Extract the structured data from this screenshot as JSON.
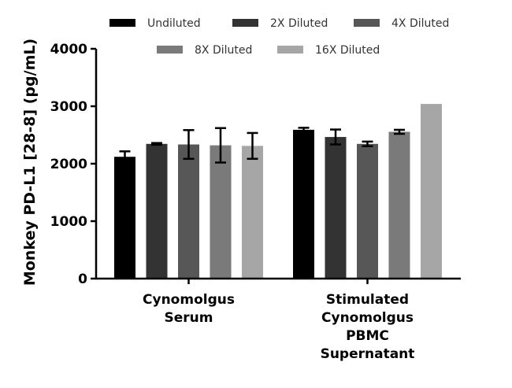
{
  "chart_data": {
    "type": "bar",
    "ylabel": "Monkey PD-L1 [28-8] (pg/mL)",
    "xlabel": "",
    "ylim": [
      0,
      4000
    ],
    "yticks": [
      0,
      1000,
      2000,
      3000,
      4000
    ],
    "grid": false,
    "legend_position": "top",
    "categories": [
      [
        "Cynomolgus",
        "Serum"
      ],
      [
        "Stimulated",
        "Cynomolgus",
        "PBMC",
        "Supernatant"
      ]
    ],
    "series": [
      {
        "name": "Undiluted",
        "color": "#000000",
        "values": [
          2120,
          2590
        ],
        "errors": [
          95,
          35
        ]
      },
      {
        "name": "2X Diluted",
        "color": "#333333",
        "values": [
          2345,
          2465
        ],
        "errors": [
          15,
          130
        ]
      },
      {
        "name": "4X Diluted",
        "color": "#575757",
        "values": [
          2335,
          2345
        ],
        "errors": [
          250,
          40
        ]
      },
      {
        "name": "8X Diluted",
        "color": "#7a7a7a",
        "values": [
          2320,
          2555
        ],
        "errors": [
          300,
          35
        ]
      },
      {
        "name": "16X Diluted",
        "color": "#a6a6a6",
        "values": [
          2310,
          3040
        ],
        "errors": [
          225,
          0
        ]
      }
    ]
  }
}
